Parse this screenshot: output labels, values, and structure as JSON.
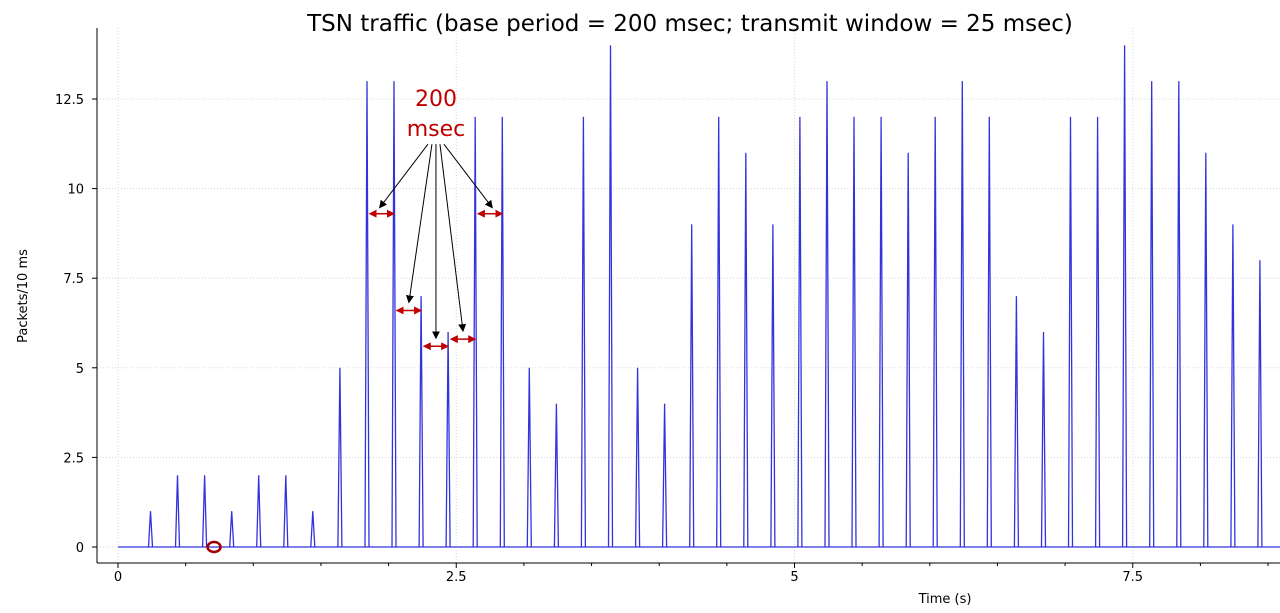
{
  "chart_data": {
    "type": "line",
    "title": "TSN traffic (base period = 200 msec; transmit window = 25 msec)",
    "xlabel": "Time (s)",
    "ylabel": "Packets/10 ms",
    "xlim": [
      0,
      8.6
    ],
    "ylim": [
      0,
      14.3
    ],
    "xticks": [
      0,
      2.5,
      5,
      7.5
    ],
    "xtick_labels": [
      "0",
      "2.5",
      "5",
      "7.5"
    ],
    "yticks": [
      0,
      2.5,
      5,
      7.5,
      10,
      12.5
    ],
    "ytick_labels": [
      "0",
      "2.5",
      "5",
      "7.5",
      "10",
      "12.5"
    ],
    "grid": true,
    "legend": "none",
    "series": [
      {
        "color": "#3333dd",
        "points": [
          {
            "x": 0.24,
            "y": 1
          },
          {
            "x": 0.44,
            "y": 2
          },
          {
            "x": 0.64,
            "y": 2
          },
          {
            "x": 0.84,
            "y": 1
          },
          {
            "x": 1.04,
            "y": 2
          },
          {
            "x": 1.24,
            "y": 2
          },
          {
            "x": 1.44,
            "y": 1
          },
          {
            "x": 1.64,
            "y": 5
          },
          {
            "x": 1.84,
            "y": 13
          },
          {
            "x": 2.04,
            "y": 13
          },
          {
            "x": 2.24,
            "y": 7
          },
          {
            "x": 2.44,
            "y": 6
          },
          {
            "x": 2.64,
            "y": 12
          },
          {
            "x": 2.84,
            "y": 12
          },
          {
            "x": 3.04,
            "y": 5
          },
          {
            "x": 3.24,
            "y": 4
          },
          {
            "x": 3.44,
            "y": 12
          },
          {
            "x": 3.64,
            "y": 14
          },
          {
            "x": 3.84,
            "y": 5
          },
          {
            "x": 4.04,
            "y": 4
          },
          {
            "x": 4.24,
            "y": 9
          },
          {
            "x": 4.44,
            "y": 12
          },
          {
            "x": 4.64,
            "y": 11
          },
          {
            "x": 4.84,
            "y": 9
          },
          {
            "x": 5.04,
            "y": 12
          },
          {
            "x": 5.24,
            "y": 13
          },
          {
            "x": 5.44,
            "y": 12
          },
          {
            "x": 5.64,
            "y": 12
          },
          {
            "x": 5.84,
            "y": 11
          },
          {
            "x": 6.04,
            "y": 12
          },
          {
            "x": 6.24,
            "y": 13
          },
          {
            "x": 6.44,
            "y": 12
          },
          {
            "x": 6.64,
            "y": 7
          },
          {
            "x": 6.84,
            "y": 6
          },
          {
            "x": 7.04,
            "y": 12
          },
          {
            "x": 7.24,
            "y": 12
          },
          {
            "x": 7.44,
            "y": 14
          },
          {
            "x": 7.64,
            "y": 13
          },
          {
            "x": 7.84,
            "y": 13
          },
          {
            "x": 8.04,
            "y": 11
          },
          {
            "x": 8.24,
            "y": 9
          },
          {
            "x": 8.44,
            "y": 8
          }
        ]
      }
    ],
    "annotations": {
      "label_lines": [
        "200",
        "msec"
      ],
      "label_anchor": {
        "x": 2.35,
        "y": 12.3
      },
      "label_color": "#c00000",
      "intervals": [
        {
          "x0": 1.86,
          "x1": 2.04,
          "y": 9.3
        },
        {
          "x0": 2.06,
          "x1": 2.24,
          "y": 6.6
        },
        {
          "x0": 2.26,
          "x1": 2.44,
          "y": 5.6
        },
        {
          "x0": 2.46,
          "x1": 2.64,
          "y": 5.8
        },
        {
          "x0": 2.66,
          "x1": 2.84,
          "y": 9.3
        }
      ],
      "marker": {
        "x": 0.71,
        "y": 0,
        "color": "#a00000"
      }
    }
  }
}
